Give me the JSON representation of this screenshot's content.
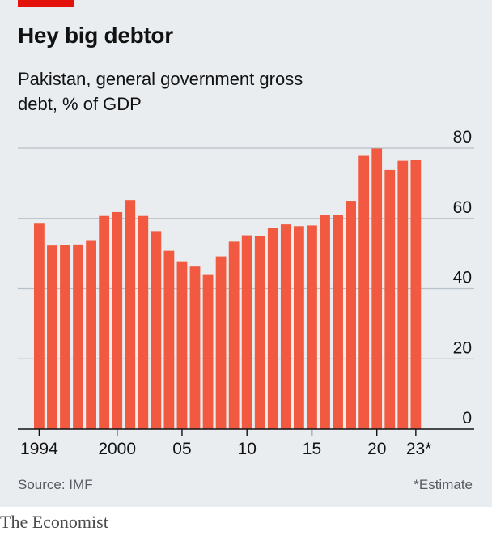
{
  "header": {
    "title": "Hey big debtor",
    "subtitle": "Pakistan, general government gross debt, % of GDP"
  },
  "footer": {
    "source": "Source: IMF",
    "note": "*Estimate",
    "brand": "The Economist"
  },
  "colors": {
    "bar": "#f15a40",
    "accent": "#e3120b",
    "background": "#e9edf0",
    "grid": "#b7c0c6",
    "axis": "#121212"
  },
  "chart_data": {
    "type": "bar",
    "title": "Hey big debtor",
    "subtitle": "Pakistan, general government gross debt, % of GDP",
    "xlabel": "",
    "ylabel": "",
    "ylim": [
      0,
      80
    ],
    "yticks": [
      0,
      20,
      40,
      60,
      80
    ],
    "ytick_labels": [
      "0",
      "20",
      "40",
      "60",
      "80"
    ],
    "y_axis_side": "right",
    "grid": true,
    "categories": [
      "1994",
      "1995",
      "1996",
      "1997",
      "1998",
      "1999",
      "2000",
      "2001",
      "2002",
      "2003",
      "2004",
      "2005",
      "2006",
      "2007",
      "2008",
      "2009",
      "2010",
      "2011",
      "2012",
      "2013",
      "2014",
      "2015",
      "2016",
      "2017",
      "2018",
      "2019",
      "2020",
      "2021",
      "2022",
      "2023"
    ],
    "values": [
      58.5,
      52.3,
      52.5,
      52.6,
      53.6,
      60.7,
      61.8,
      65.2,
      60.7,
      56.4,
      50.8,
      47.8,
      46.3,
      43.9,
      49.2,
      53.4,
      55.2,
      55.0,
      57.3,
      58.3,
      57.8,
      58.0,
      61.0,
      61.0,
      65.0,
      77.8,
      79.9,
      73.8,
      76.4,
      76.6
    ],
    "xtick_labels": [
      {
        "index": 0,
        "label": "1994"
      },
      {
        "index": 6,
        "label": "2000"
      },
      {
        "index": 11,
        "label": "05"
      },
      {
        "index": 16,
        "label": "10"
      },
      {
        "index": 21,
        "label": "15"
      },
      {
        "index": 26,
        "label": "20"
      },
      {
        "index": 29,
        "label": "23*"
      }
    ],
    "estimate_categories": [
      "2023"
    ]
  }
}
